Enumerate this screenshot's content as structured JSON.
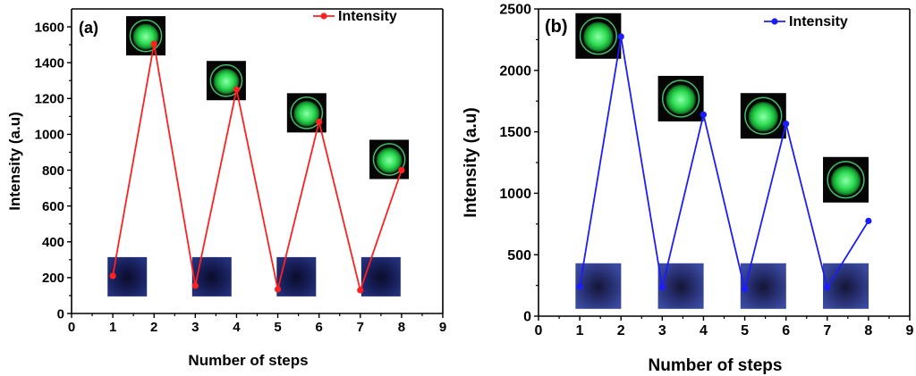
{
  "chart_data": [
    {
      "type": "line",
      "panel_label": "(a)",
      "x": [
        1,
        2,
        3,
        4,
        5,
        6,
        7,
        8
      ],
      "series": [
        {
          "name": "Intensity",
          "color": "#ff2020",
          "values": [
            210,
            1505,
            155,
            1250,
            135,
            1070,
            130,
            800
          ]
        }
      ],
      "xlabel": "Number of steps",
      "ylabel": "Intensity (a.u)",
      "xlim": [
        0,
        9
      ],
      "ylim": [
        0,
        1700
      ],
      "xticks": [
        "0",
        "1",
        "2",
        "3",
        "4",
        "5",
        "6",
        "7",
        "8",
        "9"
      ],
      "yticks": [
        "0",
        "200",
        "400",
        "600",
        "800",
        "1000",
        "1200",
        "1400",
        "1600"
      ],
      "legend": "top-right",
      "insets": [
        {
          "type": "green-emission",
          "x": 1.8,
          "y": 1550
        },
        {
          "type": "dark-blue",
          "x": 1.35,
          "y": 205
        },
        {
          "type": "green-emission",
          "x": 3.75,
          "y": 1300
        },
        {
          "type": "dark-blue",
          "x": 3.4,
          "y": 205
        },
        {
          "type": "green-emission",
          "x": 5.7,
          "y": 1120
        },
        {
          "type": "dark-blue",
          "x": 5.45,
          "y": 205
        },
        {
          "type": "green-emission",
          "x": 7.7,
          "y": 860
        },
        {
          "type": "dark-blue",
          "x": 7.5,
          "y": 205
        }
      ]
    },
    {
      "type": "line",
      "panel_label": "(b)",
      "x": [
        1,
        2,
        3,
        4,
        5,
        6,
        7,
        8
      ],
      "series": [
        {
          "name": "Intensity",
          "color": "#1c1cff",
          "values": [
            240,
            2275,
            235,
            1640,
            220,
            1565,
            235,
            775
          ]
        }
      ],
      "xlabel": "Number of steps",
      "ylabel": "Intensity (a.u)",
      "xlim": [
        0,
        9
      ],
      "ylim": [
        0,
        2500
      ],
      "xticks": [
        "0",
        "1",
        "2",
        "3",
        "4",
        "5",
        "6",
        "7",
        "8",
        "9"
      ],
      "yticks": [
        "0",
        "500",
        "1000",
        "1500",
        "2000",
        "2500"
      ],
      "legend": "top-right",
      "insets": [
        {
          "type": "green-emission",
          "x": 1.45,
          "y": 2280
        },
        {
          "type": "dark-blue",
          "x": 1.45,
          "y": 245
        },
        {
          "type": "green-emission",
          "x": 3.45,
          "y": 1770
        },
        {
          "type": "dark-blue",
          "x": 3.45,
          "y": 245
        },
        {
          "type": "green-emission",
          "x": 5.45,
          "y": 1630
        },
        {
          "type": "dark-blue",
          "x": 5.45,
          "y": 245
        },
        {
          "type": "green-emission",
          "x": 7.45,
          "y": 1110
        },
        {
          "type": "dark-blue",
          "x": 7.45,
          "y": 245
        }
      ]
    }
  ]
}
